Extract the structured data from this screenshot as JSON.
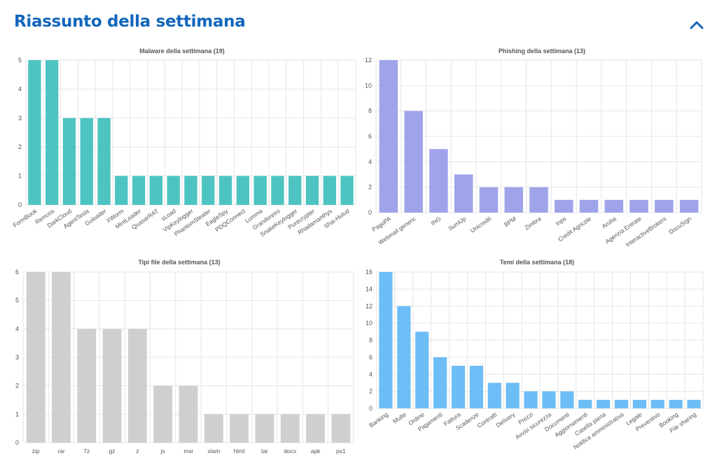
{
  "header": {
    "title": "Riassunto della settimana",
    "collapse_icon": "chevron-up-icon",
    "accent_color": "#1166bb"
  },
  "chart_data": [
    {
      "id": "malware",
      "type": "bar",
      "title": "Malware della settimana (19)",
      "color": "#4dc4c2",
      "categories": [
        "FormBook",
        "Remcos",
        "DarkCloud",
        "AgentTesla",
        "Guloader",
        "XWorm",
        "MintLoader",
        "QuasarRAT",
        "sLoad",
        "VipKeylogger",
        "PhantomStealer",
        "EagleSpy",
        "PDQConnect",
        "Lumma",
        "Grandoreiro",
        "SnakeKeylogger",
        "Purecrypter",
        "Rhadamanthys",
        "Shai-Hulud"
      ],
      "values": [
        5,
        5,
        3,
        3,
        3,
        1,
        1,
        1,
        1,
        1,
        1,
        1,
        1,
        1,
        1,
        1,
        1,
        1,
        1
      ],
      "ylim": [
        0,
        5
      ],
      "yticks": [
        0,
        1,
        2,
        3,
        4,
        5
      ],
      "xlabel": "",
      "ylabel": "",
      "rotate_labels": true,
      "grid": true
    },
    {
      "id": "phishing",
      "type": "bar",
      "title": "Phishing della settimana (13)",
      "color": "#9ea3ea",
      "categories": [
        "PagoPA",
        "Webmail generic",
        "ING",
        "SumUp",
        "Unicredit",
        "BPM",
        "Zimbra",
        "Inps",
        "Credit Agricole",
        "Aruba",
        "Agenzia Entrate",
        "InteractiveBrokers",
        "DocuSign"
      ],
      "values": [
        12,
        8,
        5,
        3,
        2,
        2,
        2,
        1,
        1,
        1,
        1,
        1,
        1
      ],
      "ylim": [
        0,
        12
      ],
      "yticks": [
        0,
        2,
        4,
        6,
        8,
        10,
        12
      ],
      "xlabel": "",
      "ylabel": "",
      "rotate_labels": true,
      "grid": true
    },
    {
      "id": "filetypes",
      "type": "bar",
      "title": "Tipi file della settimana (13)",
      "color": "#cfcfd1",
      "categories": [
        "zip",
        "rar",
        "7z",
        "gz",
        "z",
        "js",
        "msi",
        "xlam",
        "html",
        "tar",
        "docx",
        "apk",
        "ps1"
      ],
      "values": [
        6,
        6,
        4,
        4,
        4,
        2,
        2,
        1,
        1,
        1,
        1,
        1,
        1
      ],
      "ylim": [
        0,
        6
      ],
      "yticks": [
        0,
        1,
        2,
        3,
        4,
        5,
        6
      ],
      "xlabel": "",
      "ylabel": "",
      "rotate_labels": false,
      "grid": true
    },
    {
      "id": "themes",
      "type": "bar",
      "title": "Temi della settimana (18)",
      "color": "#6dbdf6",
      "categories": [
        "Banking",
        "Multe",
        "Ordine",
        "Pagamenti",
        "Fattura",
        "Scadenze",
        "Contratti",
        "Delivery",
        "Prezzi",
        "Avvisi sicurezza",
        "Documenti",
        "Aggiornamenti",
        "Casella piena",
        "Notifica amministrativa",
        "Legale",
        "Preventivo",
        "Booking",
        "File sharing"
      ],
      "values": [
        16,
        12,
        9,
        6,
        5,
        5,
        3,
        3,
        2,
        2,
        2,
        1,
        1,
        1,
        1,
        1,
        1,
        1
      ],
      "ylim": [
        0,
        16
      ],
      "yticks": [
        0,
        2,
        4,
        6,
        8,
        10,
        12,
        14,
        16
      ],
      "xlabel": "",
      "ylabel": "",
      "rotate_labels": true,
      "grid": true
    }
  ]
}
